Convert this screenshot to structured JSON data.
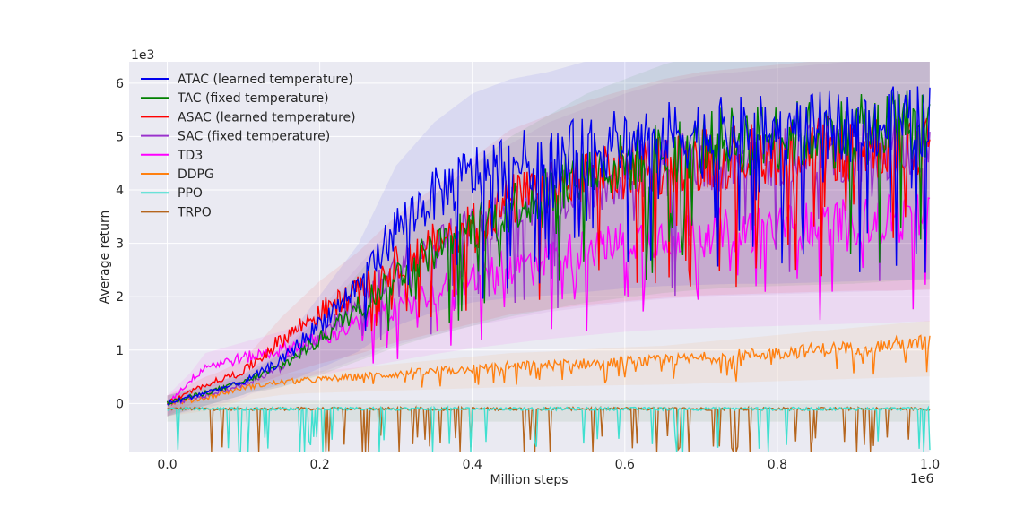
{
  "chart_data": {
    "type": "line",
    "xlabel": "Million steps",
    "ylabel": "Average return",
    "x_offset_label": "1e6",
    "y_offset_label": "1e3",
    "xlim": [
      -0.05,
      1.0
    ],
    "ylim": [
      -0.9,
      6.4
    ],
    "x_ticks": [
      0.0,
      0.2,
      0.4,
      0.6,
      0.8,
      1.0
    ],
    "x_tick_labels": [
      "0.0",
      "0.2",
      "0.4",
      "0.6",
      "0.8",
      "1.0"
    ],
    "y_ticks": [
      0,
      1,
      2,
      3,
      4,
      5,
      6
    ],
    "y_tick_labels": [
      "0",
      "1",
      "2",
      "3",
      "4",
      "5",
      "6"
    ],
    "grid": true,
    "legend_position": "top-left",
    "series": [
      {
        "name": "ATAC (learned temperature)",
        "color": "#0000ee",
        "x": [
          0.0,
          0.05,
          0.1,
          0.15,
          0.2,
          0.25,
          0.3,
          0.35,
          0.4,
          0.45,
          0.5,
          0.55,
          0.6,
          0.65,
          0.7,
          0.75,
          0.8,
          0.85,
          0.9,
          0.95,
          1.0
        ],
        "values": [
          0.0,
          0.2,
          0.4,
          0.8,
          1.5,
          2.2,
          3.3,
          3.9,
          4.3,
          4.5,
          4.6,
          4.75,
          4.9,
          5.0,
          5.05,
          5.1,
          5.1,
          5.15,
          5.2,
          5.25,
          5.3
        ]
      },
      {
        "name": "TAC (fixed temperature)",
        "color": "#008000",
        "x": [
          0.0,
          0.05,
          0.1,
          0.15,
          0.2,
          0.25,
          0.3,
          0.35,
          0.4,
          0.45,
          0.5,
          0.55,
          0.6,
          0.65,
          0.7,
          0.75,
          0.8,
          0.85,
          0.9,
          0.95,
          1.0
        ],
        "values": [
          0.0,
          0.2,
          0.4,
          0.7,
          1.2,
          1.8,
          2.4,
          2.9,
          3.3,
          3.7,
          4.0,
          4.3,
          4.5,
          4.7,
          4.85,
          4.95,
          5.0,
          5.05,
          5.1,
          5.2,
          5.3
        ]
      },
      {
        "name": "ASAC (learned temperature)",
        "color": "#ff0000",
        "x": [
          0.0,
          0.05,
          0.1,
          0.15,
          0.2,
          0.25,
          0.3,
          0.35,
          0.4,
          0.45,
          0.5,
          0.55,
          0.6,
          0.65,
          0.7,
          0.75,
          0.8,
          0.85,
          0.9,
          0.95,
          1.0
        ],
        "values": [
          0.0,
          0.35,
          0.6,
          1.2,
          1.7,
          2.1,
          2.6,
          3.0,
          3.4,
          3.8,
          4.0,
          4.2,
          4.35,
          4.5,
          4.6,
          4.65,
          4.7,
          4.75,
          4.8,
          4.8,
          4.85
        ]
      },
      {
        "name": "SAC (fixed temperature)",
        "color": "#9932cc",
        "x": [
          0.0,
          0.05,
          0.1,
          0.15,
          0.2,
          0.25,
          0.3,
          0.35,
          0.4,
          0.45,
          0.5,
          0.55,
          0.6,
          0.65,
          0.7,
          0.75,
          0.8,
          0.85,
          0.9,
          0.95,
          1.0
        ],
        "values": [
          0.0,
          0.15,
          0.35,
          0.7,
          1.3,
          1.9,
          2.5,
          2.9,
          3.3,
          3.6,
          3.9,
          4.1,
          4.3,
          4.45,
          4.55,
          4.6,
          4.65,
          4.7,
          4.75,
          4.8,
          4.85
        ]
      },
      {
        "name": "TD3",
        "color": "#ff00ff",
        "x": [
          0.0,
          0.05,
          0.1,
          0.15,
          0.2,
          0.25,
          0.3,
          0.35,
          0.4,
          0.45,
          0.5,
          0.55,
          0.6,
          0.65,
          0.7,
          0.75,
          0.8,
          0.85,
          0.9,
          0.95,
          1.0
        ],
        "values": [
          0.0,
          0.7,
          0.85,
          1.0,
          1.2,
          1.5,
          1.8,
          2.1,
          2.35,
          2.55,
          2.75,
          2.9,
          3.05,
          3.15,
          3.2,
          3.25,
          3.3,
          3.35,
          3.4,
          3.45,
          3.5
        ]
      },
      {
        "name": "DDPG",
        "color": "#ff8010",
        "x": [
          0.0,
          0.05,
          0.1,
          0.15,
          0.2,
          0.25,
          0.3,
          0.35,
          0.4,
          0.45,
          0.5,
          0.55,
          0.6,
          0.65,
          0.7,
          0.75,
          0.8,
          0.85,
          0.9,
          0.95,
          1.0
        ],
        "values": [
          0.0,
          0.1,
          0.3,
          0.4,
          0.45,
          0.5,
          0.55,
          0.6,
          0.65,
          0.7,
          0.72,
          0.75,
          0.78,
          0.8,
          0.85,
          0.9,
          0.95,
          1.0,
          1.05,
          1.1,
          1.15
        ]
      },
      {
        "name": "PPO",
        "color": "#40e0d0",
        "x": [
          0.0,
          0.05,
          0.1,
          0.15,
          0.2,
          0.25,
          0.3,
          0.35,
          0.4,
          0.45,
          0.5,
          0.55,
          0.6,
          0.65,
          0.7,
          0.75,
          0.8,
          0.85,
          0.9,
          0.95,
          1.0
        ],
        "values": [
          -0.1,
          -0.1,
          -0.1,
          -0.1,
          -0.1,
          -0.1,
          -0.1,
          -0.1,
          -0.1,
          -0.1,
          -0.1,
          -0.1,
          -0.1,
          -0.1,
          -0.1,
          -0.1,
          -0.1,
          -0.1,
          -0.1,
          -0.1,
          -0.1
        ]
      },
      {
        "name": "TRPO",
        "color": "#b5651d",
        "x": [
          0.0,
          0.05,
          0.1,
          0.15,
          0.2,
          0.25,
          0.3,
          0.35,
          0.4,
          0.45,
          0.5,
          0.55,
          0.6,
          0.65,
          0.7,
          0.75,
          0.8,
          0.85,
          0.9,
          0.95,
          1.0
        ],
        "values": [
          -0.1,
          -0.1,
          -0.1,
          -0.1,
          -0.1,
          -0.1,
          -0.1,
          -0.1,
          -0.1,
          -0.1,
          -0.1,
          -0.1,
          -0.1,
          -0.1,
          -0.1,
          -0.1,
          -0.1,
          -0.1,
          -0.1,
          -0.1,
          -0.1
        ]
      }
    ]
  }
}
